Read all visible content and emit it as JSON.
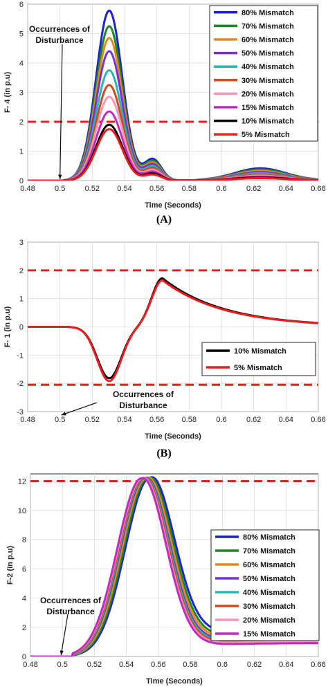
{
  "chart_data": [
    {
      "type": "line",
      "panel_label": "(A)",
      "xlabel": "Time (Seconds)",
      "ylabel": "F- 4 (in p.u)",
      "xlim": [
        0.48,
        0.66
      ],
      "ylim": [
        0,
        6
      ],
      "xticks": [
        "0.48",
        "0.5",
        "0.52",
        "0.54",
        "0.56",
        "0.58",
        "0.6",
        "0.62",
        "0.64",
        "0.66"
      ],
      "yticks": [
        "0",
        "1",
        "2",
        "3",
        "4",
        "5",
        "6"
      ],
      "grid": true,
      "legend_position": "top-right",
      "threshold": 2,
      "annotation": {
        "lines": [
          "Occurrences of",
          "Disturbance"
        ],
        "points_to": [
          0.5,
          0
        ]
      },
      "series": [
        {
          "name": "80% Mismatch",
          "color": "#1f1fd6",
          "peak": 5.78,
          "second_peak": 0.72,
          "third_peak": 0.4
        },
        {
          "name": "70% Mismatch",
          "color": "#1d8a1d",
          "peak": 5.25,
          "second_peak": 0.66,
          "third_peak": 0.36
        },
        {
          "name": "60% Mismatch",
          "color": "#e08a1e",
          "peak": 4.85,
          "second_peak": 0.6,
          "third_peak": 0.32
        },
        {
          "name": "50% Mismatch",
          "color": "#7a2fd0",
          "peak": 4.4,
          "second_peak": 0.55,
          "third_peak": 0.28
        },
        {
          "name": "40% Mismatch",
          "color": "#25b5b5",
          "peak": 3.75,
          "second_peak": 0.48,
          "third_peak": 0.24
        },
        {
          "name": "30% Mismatch",
          "color": "#d04a1a",
          "peak": 3.25,
          "second_peak": 0.42,
          "third_peak": 0.2
        },
        {
          "name": "20% Mismatch",
          "color": "#f497b6",
          "peak": 2.85,
          "second_peak": 0.36,
          "third_peak": 0.16
        },
        {
          "name": "15% Mismatch",
          "color": "#c02ac0",
          "peak": 2.35,
          "second_peak": 0.3,
          "third_peak": 0.13
        },
        {
          "name": "10% Mismatch",
          "color": "#000000",
          "peak": 1.9,
          "second_peak": 0.24,
          "third_peak": 0.1
        },
        {
          "name": "5% Mismatch",
          "color": "#ee1c1c",
          "peak": 1.75,
          "second_peak": 0.2,
          "third_peak": 0.08
        }
      ]
    },
    {
      "type": "line",
      "panel_label": "(B)",
      "xlabel": "Time (Seconds)",
      "ylabel": "F- 1 (in p.u)",
      "xlim": [
        0.48,
        0.66
      ],
      "ylim": [
        -3,
        3
      ],
      "xticks": [
        "0.48",
        "0.5",
        "0.52",
        "0.54",
        "0.56",
        "0.58",
        "0.6",
        "0.62",
        "0.64",
        "0.66"
      ],
      "yticks": [
        "3",
        "2",
        "1",
        "0",
        "-1",
        "-2",
        "-3"
      ],
      "grid": true,
      "legend_position": "lower-right",
      "thresholds": [
        2,
        -2.05
      ],
      "annotation": {
        "lines": [
          "Occurrences of",
          "Disturbance"
        ],
        "points_to": [
          0.5,
          -2.95
        ]
      },
      "series": [
        {
          "name": "10% Mismatch",
          "color": "#000000",
          "trough": -1.82,
          "peak": 1.72
        },
        {
          "name": "5% Mismatch",
          "color": "#ee1c1c",
          "trough": -1.92,
          "peak": 1.65
        }
      ]
    },
    {
      "type": "line",
      "panel_label": "",
      "xlabel": "Time (Seconds)",
      "ylabel": "F-2 (in p.u)",
      "xlim": [
        0.48,
        0.66
      ],
      "ylim": [
        0,
        12.5
      ],
      "xticks": [
        "0.48",
        "0.5",
        "0.52",
        "0.54",
        "0.56",
        "0.58",
        "0.6",
        "0.62",
        "0.64",
        "0.66"
      ],
      "yticks": [
        "0",
        "2",
        "4",
        "6",
        "8",
        "10",
        "12"
      ],
      "grid": true,
      "legend_position": "right",
      "threshold": 12,
      "annotation": {
        "lines": [
          "Occurrences of",
          "Disturbance"
        ],
        "points_to": [
          0.5,
          0
        ]
      },
      "series": [
        {
          "name": "80% Mismatch",
          "color": "#1f1fd6",
          "peak_time": 0.5545,
          "final": 1.85
        },
        {
          "name": "70% Mismatch",
          "color": "#1d8a1d",
          "peak_time": 0.5535,
          "final": 1.6
        },
        {
          "name": "60% Mismatch",
          "color": "#e08a1e",
          "peak_time": 0.5525,
          "final": 1.45
        },
        {
          "name": "50% Mismatch",
          "color": "#7a2fd0",
          "peak_time": 0.5515,
          "final": 1.3
        },
        {
          "name": "40% Mismatch",
          "color": "#25b5b5",
          "peak_time": 0.551,
          "final": 1.2
        },
        {
          "name": "30% Mismatch",
          "color": "#d04a1a",
          "peak_time": 0.5505,
          "final": 1.1
        },
        {
          "name": "20% Mismatch",
          "color": "#f497b6",
          "peak_time": 0.55,
          "final": 1.0
        },
        {
          "name": "15% Mismatch",
          "color": "#c02ac0",
          "peak_time": 0.5495,
          "final": 0.9
        }
      ]
    }
  ]
}
